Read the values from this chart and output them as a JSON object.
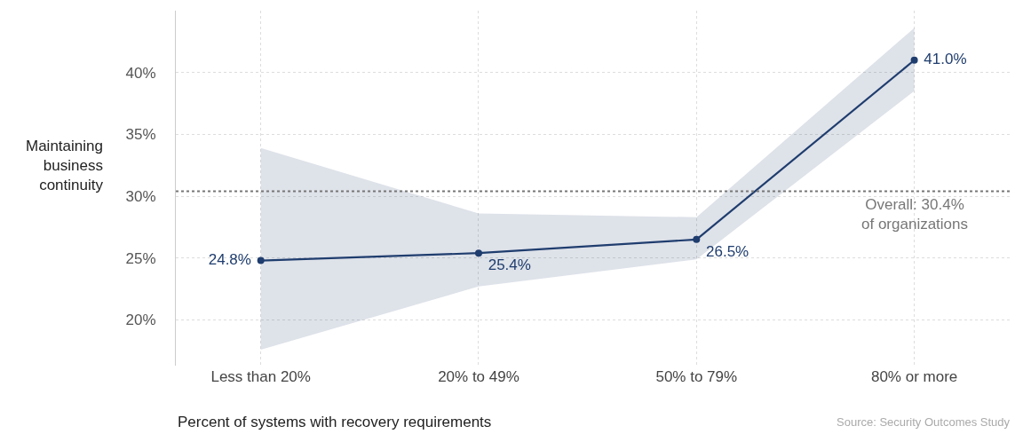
{
  "chart_data": {
    "type": "line",
    "xlabel": "Percent of systems with recovery requirements",
    "ylabel": "Maintaining\nbusiness\ncontinuity",
    "categories": [
      "Less than 20%",
      "20% to 49%",
      "50% to 79%",
      "80% or more"
    ],
    "series": [
      {
        "color": "#1f3d6e",
        "values": [
          24.8,
          25.4,
          26.5,
          41.0
        ],
        "lower": [
          17.6,
          22.7,
          24.9,
          38.5
        ],
        "upper": [
          33.9,
          28.6,
          28.3,
          43.6
        ],
        "value_labels": [
          "24.8%",
          "25.4%",
          "26.5%",
          "41.0%"
        ]
      }
    ],
    "ylim": [
      16.3,
      45
    ],
    "yticks": [
      {
        "value": 20,
        "label": "20%"
      },
      {
        "value": 25,
        "label": "25%"
      },
      {
        "value": 30,
        "label": "30%"
      },
      {
        "value": 35,
        "label": "35%"
      },
      {
        "value": 40,
        "label": "40%"
      }
    ],
    "ref_lines": [
      {
        "axis": "y",
        "value": 30.4,
        "label": "Overall: 30.4%\nof organizations",
        "color": "#777777",
        "line_style": "dotted"
      }
    ],
    "annotations": [
      "Source: Security Outcomes Study"
    ],
    "grid": true,
    "marker": "circle",
    "line_style": "solid"
  }
}
